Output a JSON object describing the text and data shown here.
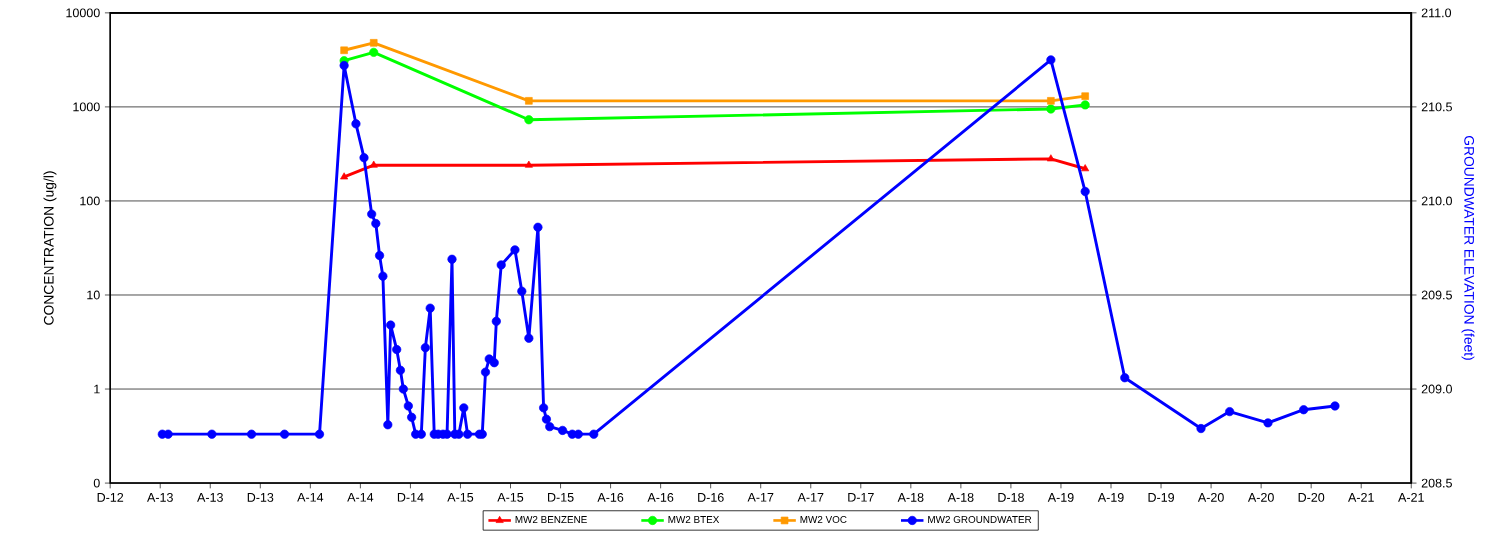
{
  "chart_data": {
    "type": "line",
    "ylabel": "CONCENTRATION (ug/l)",
    "y2label": "GROUNDWATER ELEVATION (feet)",
    "log": "y",
    "grid": "y",
    "legend": "bottom",
    "xlim": [
      "2012-12",
      "2021-08"
    ],
    "xticks": [
      {
        "value": "2012-12",
        "label": "D-12"
      },
      {
        "value": "2013-04",
        "label": "A-13"
      },
      {
        "value": "2013-08",
        "label": "A-13"
      },
      {
        "value": "2013-12",
        "label": "D-13"
      },
      {
        "value": "2014-04",
        "label": "A-14"
      },
      {
        "value": "2014-08",
        "label": "A-14"
      },
      {
        "value": "2014-12",
        "label": "D-14"
      },
      {
        "value": "2015-04",
        "label": "A-15"
      },
      {
        "value": "2015-08",
        "label": "A-15"
      },
      {
        "value": "2015-12",
        "label": "D-15"
      },
      {
        "value": "2016-04",
        "label": "A-16"
      },
      {
        "value": "2016-08",
        "label": "A-16"
      },
      {
        "value": "2016-12",
        "label": "D-16"
      },
      {
        "value": "2017-04",
        "label": "A-17"
      },
      {
        "value": "2017-08",
        "label": "A-17"
      },
      {
        "value": "2017-12",
        "label": "D-17"
      },
      {
        "value": "2018-04",
        "label": "A-18"
      },
      {
        "value": "2018-08",
        "label": "A-18"
      },
      {
        "value": "2018-12",
        "label": "D-18"
      },
      {
        "value": "2019-04",
        "label": "A-19"
      },
      {
        "value": "2019-08",
        "label": "A-19"
      },
      {
        "value": "2019-12",
        "label": "D-19"
      },
      {
        "value": "2020-04",
        "label": "A-20"
      },
      {
        "value": "2020-08",
        "label": "A-20"
      },
      {
        "value": "2020-12",
        "label": "D-20"
      },
      {
        "value": "2021-04",
        "label": "A-21"
      },
      {
        "value": "2021-08",
        "label": "A-21"
      }
    ],
    "ylim": [
      0.1,
      10000
    ],
    "yticks": [
      {
        "value": 0.1,
        "label": "0"
      },
      1,
      10,
      100,
      1000,
      10000
    ],
    "y2lim": [
      208.5,
      211.0
    ],
    "y2ticks": [
      {
        "value": 208.5,
        "label": "208.5"
      },
      {
        "value": 209.0,
        "label": "209.0"
      },
      {
        "value": 209.5,
        "label": "209.5"
      },
      {
        "value": 210.0,
        "label": "210.0"
      },
      {
        "value": 210.5,
        "label": "210.5"
      },
      {
        "value": 211.0,
        "label": "211.0"
      }
    ],
    "series": [
      {
        "name": "MW2 BENZENE",
        "color": "#ff0000",
        "marker": "triangle",
        "x": [
          "2014-06-22",
          "2014-09-03",
          "2015-09-15",
          "2019-03-07",
          "2019-05-30"
        ],
        "values": [
          180,
          240,
          240,
          280,
          220
        ]
      },
      {
        "name": "MW2 BTEX",
        "color": "#00ff00",
        "marker": "circle",
        "x": [
          "2014-06-22",
          "2014-09-03",
          "2015-09-15",
          "2019-03-07",
          "2019-05-30"
        ],
        "values": [
          3100,
          3800,
          730,
          950,
          1050
        ]
      },
      {
        "name": "MW2 VOC",
        "color": "#ff9900",
        "marker": "square",
        "x": [
          "2014-06-22",
          "2014-09-03",
          "2015-09-15",
          "2019-03-07",
          "2019-05-30"
        ],
        "values": [
          4000,
          4800,
          1160,
          1160,
          1300
        ]
      },
      {
        "name": "MW2 GROUNDWATER",
        "color": "#0000ff",
        "marker": "circle",
        "axis": "y2",
        "x": [
          "2013-04-06",
          "2013-04-20",
          "2013-08-05",
          "2013-11-10",
          "2014-01-30",
          "2014-04-23",
          "2014-06-22",
          "2014-07-21",
          "2014-08-10",
          "2014-08-29",
          "2014-09-08",
          "2014-09-17",
          "2014-09-25",
          "2014-10-07",
          "2014-10-14",
          "2014-10-29",
          "2014-11-07",
          "2014-11-14",
          "2014-11-26",
          "2014-12-04",
          "2014-12-14",
          "2014-12-28",
          "2015-01-07",
          "2015-01-19",
          "2015-01-29",
          "2015-02-07",
          "2015-02-18",
          "2015-02-27",
          "2015-03-11",
          "2015-03-18",
          "2015-03-28",
          "2015-04-09",
          "2015-04-18",
          "2015-05-17",
          "2015-05-24",
          "2015-06-01",
          "2015-06-10",
          "2015-06-22",
          "2015-06-27",
          "2015-07-09",
          "2015-08-12",
          "2015-08-29",
          "2015-09-15",
          "2015-10-07",
          "2015-10-21",
          "2015-10-28",
          "2015-11-05",
          "2015-12-06",
          "2015-12-30",
          "2016-01-14",
          "2016-02-20",
          "2019-03-07",
          "2019-05-30",
          "2019-09-04",
          "2020-03-07",
          "2020-05-16",
          "2020-08-18",
          "2020-11-13",
          "2021-01-29"
        ],
        "values": [
          208.76,
          208.76,
          208.76,
          208.76,
          208.76,
          208.76,
          210.72,
          210.41,
          210.23,
          209.93,
          209.88,
          209.71,
          209.6,
          208.81,
          209.34,
          209.21,
          209.1,
          209.0,
          208.91,
          208.85,
          208.76,
          208.76,
          209.22,
          209.43,
          208.76,
          208.76,
          208.76,
          208.76,
          209.69,
          208.76,
          208.76,
          208.9,
          208.76,
          208.76,
          208.76,
          209.09,
          209.16,
          209.14,
          209.36,
          209.66,
          209.74,
          209.52,
          209.27,
          209.86,
          208.9,
          208.84,
          208.8,
          208.78,
          208.76,
          208.76,
          208.76,
          210.75,
          210.05,
          209.06,
          208.79,
          208.88,
          208.82,
          208.89,
          208.91
        ]
      }
    ]
  }
}
